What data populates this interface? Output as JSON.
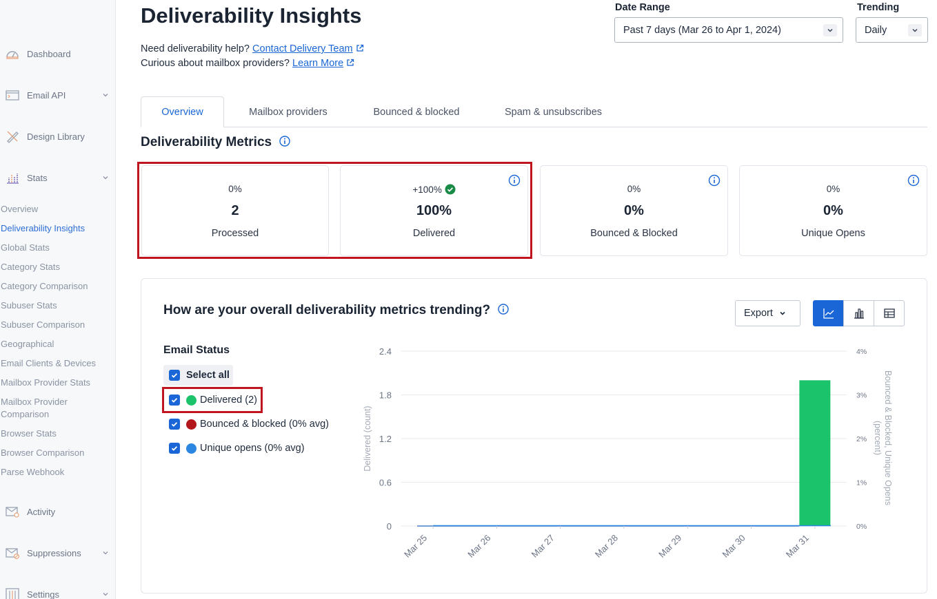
{
  "sidebar": {
    "items": [
      {
        "label": "Dashboard",
        "icon": "gauge-icon"
      },
      {
        "label": "Email API",
        "icon": "terminal-icon"
      },
      {
        "label": "Design Library",
        "icon": "pencil-ruler-icon"
      },
      {
        "label": "Stats",
        "icon": "bar-chart-icon"
      },
      {
        "label": "Activity",
        "icon": "envelope-search-icon"
      },
      {
        "label": "Suppressions",
        "icon": "envelope-block-icon"
      },
      {
        "label": "Settings",
        "icon": "sliders-icon"
      }
    ],
    "stats_subitems": [
      "Overview",
      "Deliverability Insights",
      "Global Stats",
      "Category Stats",
      "Category Comparison",
      "Subuser Stats",
      "Subuser Comparison",
      "Geographical",
      "Email Clients & Devices",
      "Mailbox Provider Stats",
      "Mailbox Provider",
      "Comparison",
      "Browser Stats",
      "Browser Comparison",
      "Parse Webhook"
    ],
    "active_subitem": "Deliverability Insights"
  },
  "header": {
    "title": "Deliverability Insights",
    "help1_prefix": "Need deliverability help?",
    "help1_link": "Contact Delivery Team",
    "help2_prefix": "Curious about mailbox providers?",
    "help2_link": "Learn More"
  },
  "filters": {
    "date_range_label": "Date Range",
    "date_range_value": "Past 7 days (Mar 26 to Apr 1, 2024)",
    "trending_label": "Trending",
    "trending_value": "Daily"
  },
  "tabs": [
    {
      "label": "Overview",
      "active": true
    },
    {
      "label": "Mailbox providers",
      "active": false
    },
    {
      "label": "Bounced & blocked",
      "active": false
    },
    {
      "label": "Spam & unsubscribes",
      "active": false
    }
  ],
  "metrics": {
    "section_title": "Deliverability Metrics",
    "cards": [
      {
        "change": "0%",
        "value": "2",
        "label": "Processed"
      },
      {
        "change": "+100%",
        "value": "100%",
        "label": "Delivered"
      },
      {
        "change": "0%",
        "value": "0%",
        "label": "Bounced & Blocked"
      },
      {
        "change": "0%",
        "value": "0%",
        "label": "Unique Opens"
      }
    ]
  },
  "trend": {
    "title": "How are your overall deliverability metrics trending?",
    "export_label": "Export",
    "email_status_title": "Email Status",
    "select_all": "Select all",
    "statuses": [
      {
        "label": "Delivered (2)",
        "color": "#1bc46a"
      },
      {
        "label": "Bounced & blocked (0% avg)",
        "color": "#b3161b"
      },
      {
        "label": "Unique opens (0% avg)",
        "color": "#2b86e2"
      }
    ]
  },
  "colors": {
    "accent": "#1a66d6",
    "highlight": "#c0151f",
    "success": "#1a8a47"
  },
  "chart_data": {
    "type": "bar",
    "categories": [
      "Mar 25",
      "Mar 26",
      "Mar 27",
      "Mar 28",
      "Mar 29",
      "Mar 30",
      "Mar 31"
    ],
    "series": [
      {
        "name": "Delivered",
        "values": [
          0,
          0,
          0,
          0,
          0,
          0,
          2
        ],
        "axis": "left",
        "color": "#1bc46a"
      },
      {
        "name": "Bounced & blocked",
        "values": [
          0,
          0,
          0,
          0,
          0,
          0,
          0
        ],
        "axis": "right",
        "color": "#b3161b"
      },
      {
        "name": "Unique opens",
        "values": [
          0,
          0,
          0,
          0,
          0,
          0,
          0
        ],
        "axis": "right",
        "color": "#2b86e2"
      }
    ],
    "ylabel": "Delivered (count)",
    "ylabel_right": "Bounced & Blocked, Unique Opens (percent)",
    "ylim": [
      0,
      2.4
    ],
    "yticks": [
      "0",
      "0.6",
      "1.2",
      "1.8",
      "2.4"
    ],
    "ylim_right": [
      0,
      4
    ],
    "yticks_right": [
      "0%",
      "1%",
      "2%",
      "3%",
      "4%"
    ],
    "grid": true
  }
}
